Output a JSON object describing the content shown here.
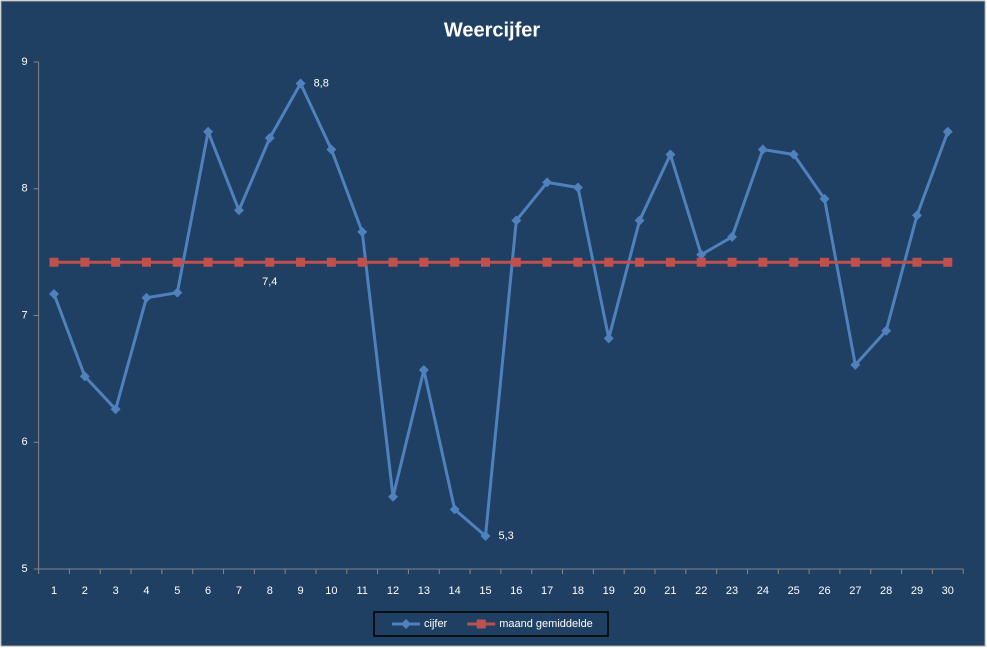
{
  "chart_data": {
    "type": "line",
    "title": "Weercijfer",
    "categories": [
      "1",
      "2",
      "3",
      "4",
      "5",
      "6",
      "7",
      "8",
      "9",
      "10",
      "11",
      "12",
      "13",
      "14",
      "15",
      "16",
      "17",
      "18",
      "19",
      "20",
      "21",
      "22",
      "23",
      "24",
      "25",
      "26",
      "27",
      "28",
      "29",
      "30"
    ],
    "series": [
      {
        "name": "cijfer",
        "color": "#4f81bd",
        "marker": "diamond",
        "values": [
          7.17,
          6.52,
          6.26,
          7.14,
          7.18,
          8.45,
          7.83,
          8.4,
          8.83,
          8.31,
          7.66,
          5.57,
          6.57,
          5.47,
          5.26,
          7.75,
          8.05,
          8.01,
          6.82,
          7.75,
          8.27,
          7.48,
          7.62,
          8.31,
          8.27,
          7.92,
          6.61,
          6.88,
          7.79,
          8.45
        ],
        "value_labels": [
          null,
          null,
          null,
          null,
          null,
          null,
          null,
          null,
          "8,8",
          null,
          null,
          null,
          null,
          null,
          "5,3",
          null,
          null,
          null,
          null,
          null,
          null,
          null,
          null,
          null,
          null,
          null,
          null,
          null,
          null,
          null
        ]
      },
      {
        "name": "maand gemiddelde",
        "color": "#c0504d",
        "marker": "square",
        "values": [
          7.42,
          7.42,
          7.42,
          7.42,
          7.42,
          7.42,
          7.42,
          7.42,
          7.42,
          7.42,
          7.42,
          7.42,
          7.42,
          7.42,
          7.42,
          7.42,
          7.42,
          7.42,
          7.42,
          7.42,
          7.42,
          7.42,
          7.42,
          7.42,
          7.42,
          7.42,
          7.42,
          7.42,
          7.42,
          7.42
        ],
        "value_labels": [
          null,
          null,
          null,
          null,
          null,
          null,
          null,
          "7,4",
          null,
          null,
          null,
          null,
          null,
          null,
          null,
          null,
          null,
          null,
          null,
          null,
          null,
          null,
          null,
          null,
          null,
          null,
          null,
          null,
          null,
          null
        ]
      }
    ],
    "ylim": [
      5,
      9
    ],
    "yticks": [
      5,
      6,
      7,
      8,
      9
    ],
    "grid": false,
    "legend": "bottom"
  }
}
